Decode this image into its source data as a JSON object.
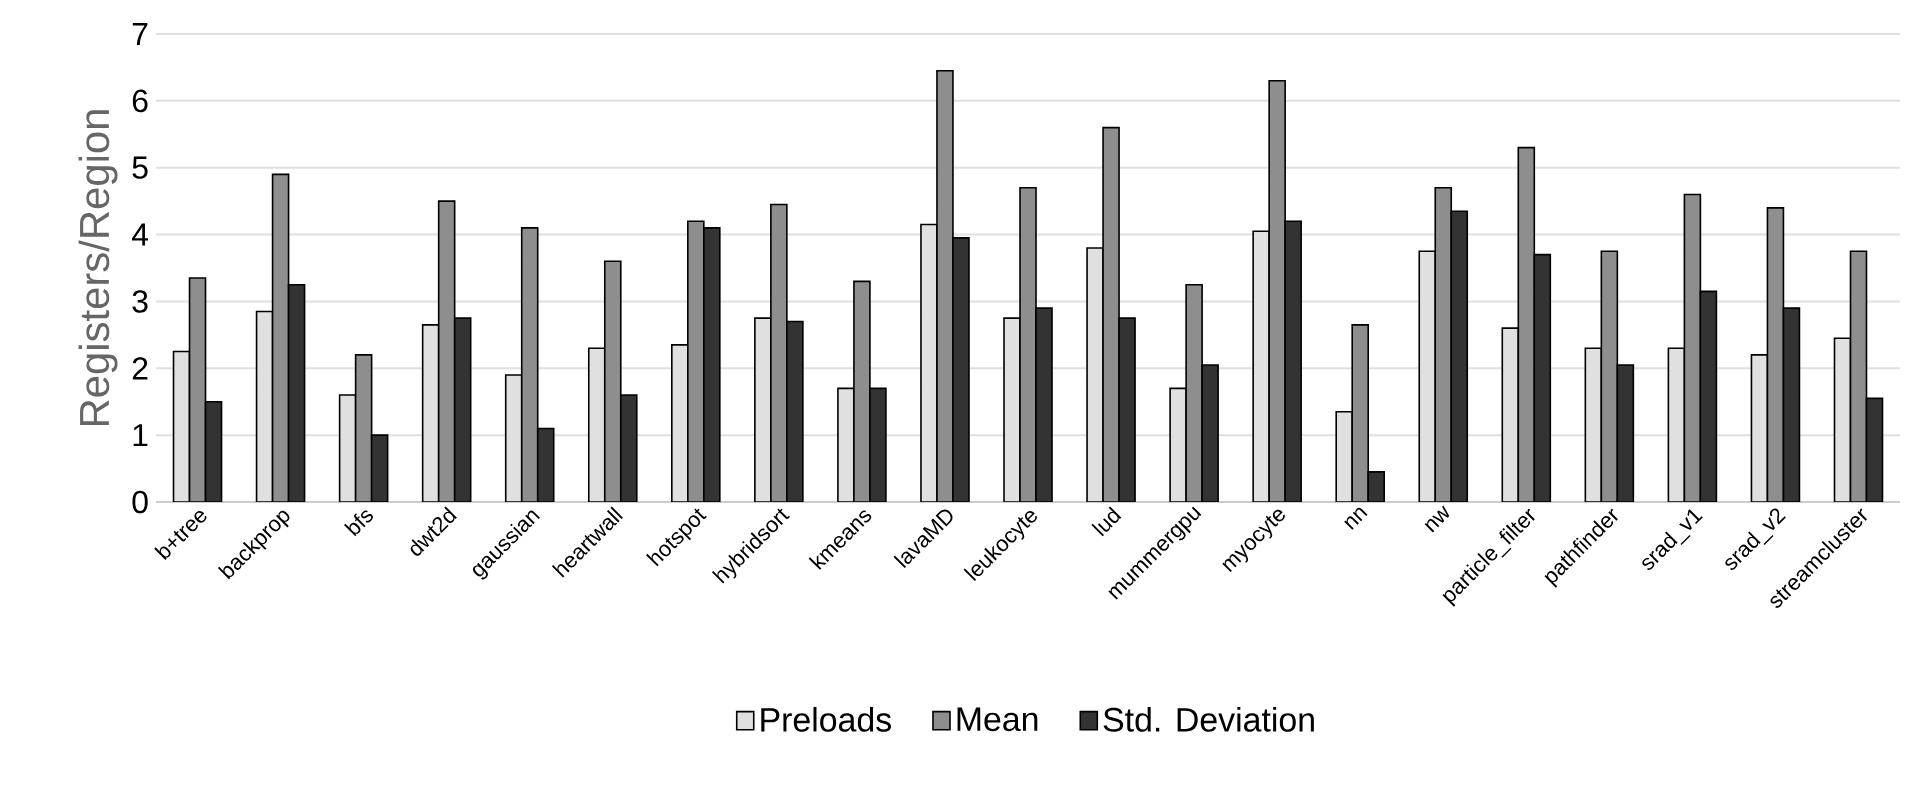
{
  "chart_data": {
    "type": "bar",
    "ylabel": "Registers/Region",
    "categories": [
      "b+tree",
      "backprop",
      "bfs",
      "dwt2d",
      "gaussian",
      "heartwall",
      "hotspot",
      "hybridsort",
      "kmeans",
      "lavaMD",
      "leukocyte",
      "lud",
      "mummergpu",
      "myocyte",
      "nn",
      "nw",
      "particle_filter",
      "pathfinder",
      "srad_v1",
      "srad_v2",
      "streamcluster"
    ],
    "series": [
      {
        "name": "Preloads",
        "color": "#e0e0e0",
        "values": [
          2.25,
          2.85,
          1.6,
          2.65,
          1.9,
          2.3,
          2.35,
          2.75,
          1.7,
          4.15,
          2.75,
          3.8,
          1.7,
          4.05,
          1.35,
          3.75,
          2.6,
          2.3,
          2.3,
          2.2,
          2.45
        ]
      },
      {
        "name": "Mean",
        "color": "#8e8e8e",
        "values": [
          3.35,
          4.9,
          2.2,
          4.5,
          4.1,
          3.6,
          4.2,
          4.45,
          3.3,
          6.45,
          4.7,
          5.6,
          3.25,
          6.3,
          2.65,
          4.7,
          5.3,
          3.75,
          4.6,
          4.4,
          3.75
        ]
      },
      {
        "name": "Std. Deviation",
        "color": "#333333",
        "values": [
          1.5,
          3.25,
          1.0,
          2.75,
          1.1,
          1.6,
          4.1,
          2.7,
          1.7,
          3.95,
          2.9,
          2.75,
          2.05,
          4.2,
          0.45,
          4.35,
          3.7,
          2.05,
          3.15,
          2.9,
          1.55
        ]
      }
    ],
    "ylim": [
      0,
      7
    ],
    "yticks": [
      0,
      1,
      2,
      3,
      4,
      5,
      6,
      7
    ],
    "grid": "y",
    "legend": "bottom"
  }
}
